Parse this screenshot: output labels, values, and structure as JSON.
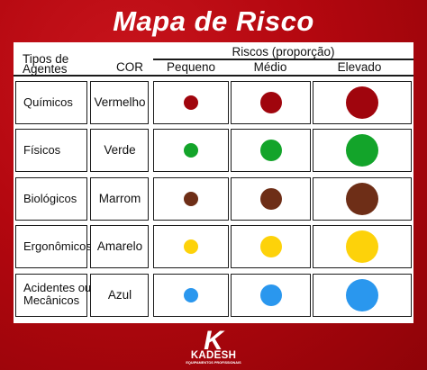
{
  "title": "Mapa de Risco",
  "table": {
    "col_agents": [
      "Tipos de",
      "Agentes"
    ],
    "col_cor": "COR",
    "risk_header": "Riscos (proporção)",
    "levels": [
      "Pequeno",
      "Médio",
      "Elevado"
    ],
    "rows": [
      {
        "agent": [
          "Químicos"
        ],
        "color_name": "Vermelho",
        "color": "#a0050d"
      },
      {
        "agent": [
          "Físicos"
        ],
        "color_name": "Verde",
        "color": "#13a42a"
      },
      {
        "agent": [
          "Biológicos"
        ],
        "color_name": "Marrom",
        "color": "#6e2e17"
      },
      {
        "agent": [
          "Ergonômicos"
        ],
        "color_name": "Amarelo",
        "color": "#fdd20a"
      },
      {
        "agent": [
          "Acidentes ou",
          "Mecânicos"
        ],
        "color_name": "Azul",
        "color": "#2a97ee"
      }
    ]
  },
  "logo": {
    "mark": "K",
    "name": "KADESH",
    "tagline": "EQUIPAMENTOS PROFISSIONAIS"
  }
}
